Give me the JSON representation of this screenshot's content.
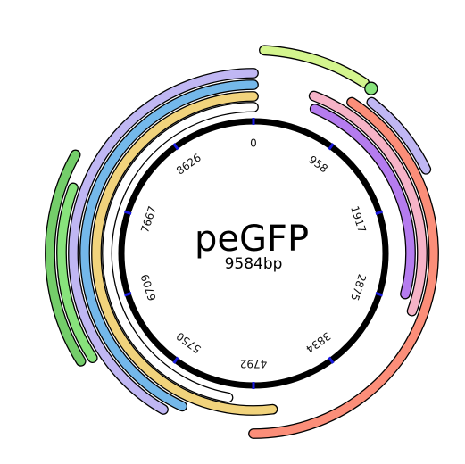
{
  "plasmid": {
    "name": "peGFP",
    "size_label": "9584bp",
    "length_bp": 9584,
    "backbone_color": "#000000",
    "tick_color": "#1a1adf"
  },
  "ticks": [
    {
      "bp": 0,
      "label": "0"
    },
    {
      "bp": 958,
      "label": "958"
    },
    {
      "bp": 1917,
      "label": "1917"
    },
    {
      "bp": 2875,
      "label": "2875"
    },
    {
      "bp": 3834,
      "label": "3834"
    },
    {
      "bp": 4792,
      "label": "4792"
    },
    {
      "bp": 5750,
      "label": "5750"
    },
    {
      "bp": 6709,
      "label": "6709"
    },
    {
      "bp": 7667,
      "label": "7667"
    },
    {
      "bp": 8626,
      "label": "8626"
    }
  ],
  "features": [
    {
      "name": "white-arc",
      "color": "#ffffff",
      "ring": 0,
      "start_deg": 190,
      "end_deg": 360
    },
    {
      "name": "yellow-arc",
      "color": "#f1d37c",
      "ring": 1,
      "start_deg": 173,
      "end_deg": 360
    },
    {
      "name": "blue-arc",
      "color": "#74b8ea",
      "ring": 2,
      "start_deg": 205,
      "end_deg": 360
    },
    {
      "name": "lavender-arc",
      "color": "#c0b7f3",
      "ring": 3,
      "start_deg": 210,
      "end_deg": 360
    },
    {
      "name": "purple-arc",
      "color": "#b57cee",
      "ring": 1,
      "start_deg": 23,
      "end_deg": 105
    },
    {
      "name": "pink-arc",
      "color": "#f6b3c7",
      "ring": 2,
      "start_deg": 21,
      "end_deg": 110
    },
    {
      "name": "salmon-arc",
      "color": "#fb8e79",
      "ring": 3,
      "start_deg": 33,
      "end_deg": 180
    },
    {
      "name": "outer-lavender-arc",
      "color": "#c0b7f3",
      "ring": 4,
      "start_deg": 38,
      "end_deg": 64
    },
    {
      "name": "lime-arc",
      "color": "#d4f58e",
      "ring": 5,
      "start_deg": 3,
      "end_deg": 33
    },
    {
      "name": "green-arc",
      "color": "#88e37c",
      "ring": 4,
      "start_deg": 237,
      "end_deg": 290
    },
    {
      "name": "dark-green-arc",
      "color": "#74cd6a",
      "ring": 5,
      "start_deg": 238,
      "end_deg": 299
    }
  ]
}
